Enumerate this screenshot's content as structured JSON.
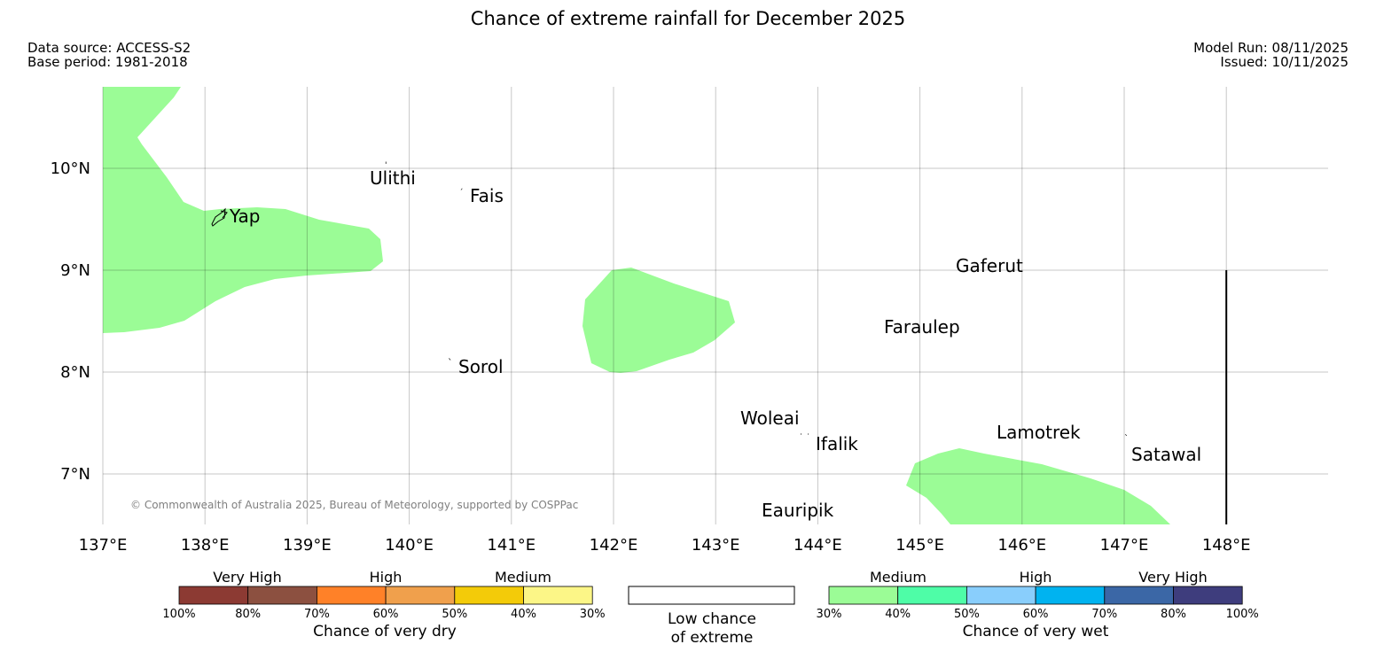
{
  "header": {
    "title": "Chance of extreme rainfall for December 2025",
    "data_source": "Data source: ACCESS-S2",
    "base_period": "Base period: 1981-2018",
    "model_run": "Model Run: 08/11/2025",
    "issued": "Issued: 10/11/2025"
  },
  "map": {
    "lon_range": [
      137.0,
      149.0
    ],
    "lat_range": [
      6.5,
      10.8
    ],
    "lon_ticks": [
      {
        "value": 137,
        "label": "137°E"
      },
      {
        "value": 138,
        "label": "138°E"
      },
      {
        "value": 139,
        "label": "139°E"
      },
      {
        "value": 140,
        "label": "140°E"
      },
      {
        "value": 141,
        "label": "141°E"
      },
      {
        "value": 142,
        "label": "142°E"
      },
      {
        "value": 143,
        "label": "143°E"
      },
      {
        "value": 144,
        "label": "144°E"
      },
      {
        "value": 145,
        "label": "145°E"
      },
      {
        "value": 146,
        "label": "146°E"
      },
      {
        "value": 147,
        "label": "147°E"
      },
      {
        "value": 148,
        "label": "148°E"
      }
    ],
    "lat_ticks": [
      {
        "value": 10,
        "label": "10°N"
      },
      {
        "value": 9,
        "label": "9°N"
      },
      {
        "value": 8,
        "label": "8°N"
      },
      {
        "value": 7,
        "label": "7°N"
      }
    ],
    "places": [
      {
        "name": "Ulithi",
        "lon": 139.8,
        "lat": 10.02
      },
      {
        "name": "Fais",
        "lon": 140.52,
        "lat": 9.77
      },
      {
        "name": "Yap",
        "lon": 138.12,
        "lat": 9.53
      },
      {
        "name": "Gaferut",
        "lon": 145.36,
        "lat": 9.0
      },
      {
        "name": "Faraulep",
        "lon": 144.67,
        "lat": 8.4
      },
      {
        "name": "Sorol",
        "lon": 140.42,
        "lat": 8.13
      },
      {
        "name": "Woleai",
        "lon": 143.87,
        "lat": 7.37
      },
      {
        "name": "Ifalik",
        "lon": 143.93,
        "lat": 7.36
      },
      {
        "name": "Lamotrek",
        "lon": 145.75,
        "lat": 7.38
      },
      {
        "name": "Satawal",
        "lon": 147.05,
        "lat": 7.36
      },
      {
        "name": "Eauripik",
        "lon": 143.6,
        "lat": 6.68
      }
    ],
    "boundary_lon": 148.0,
    "region_fill_color": "#9bfc96",
    "region_category": "Medium (30%-40% chance of very wet)",
    "copyright": "© Commonwealth of Australia 2025, Bureau of Meteorology, supported by COSPPac"
  },
  "legend": {
    "dry": {
      "groups": [
        "Very High",
        "High",
        "Medium"
      ],
      "colors": [
        "#8c3a33",
        "#8c5040",
        "#ff8128",
        "#f0a04c",
        "#f3cb09",
        "#fcf687"
      ],
      "ticks": [
        "100%",
        "80%",
        "70%",
        "60%",
        "50%",
        "40%",
        "30%"
      ],
      "title": "Chance of very dry"
    },
    "low": {
      "line1": "Low chance",
      "line2": "of extreme"
    },
    "wet": {
      "groups": [
        "Medium",
        "High",
        "Very High"
      ],
      "colors": [
        "#9bfc96",
        "#4efda7",
        "#89cefc",
        "#00b3f0",
        "#3b67a6",
        "#3e3d7d"
      ],
      "ticks": [
        "30%",
        "40%",
        "50%",
        "60%",
        "70%",
        "80%",
        "100%"
      ],
      "title": "Chance of very wet"
    }
  }
}
